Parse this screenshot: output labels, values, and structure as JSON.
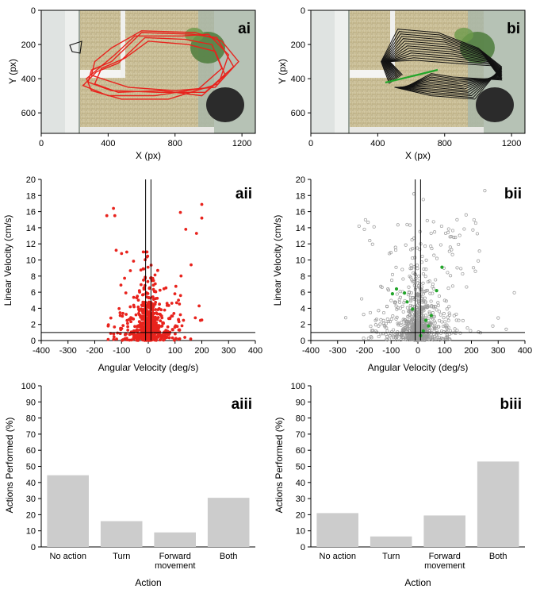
{
  "colors": {
    "red": "#e8231d",
    "green": "#22a52a",
    "gray_bar": "#cccccc",
    "gray_point": "#9a9a9a",
    "track_black": "#111111"
  },
  "chart_data": [
    {
      "id": "ai",
      "panel_label": "ai",
      "type": "image-with-tracks",
      "xlabel": "X (px)",
      "ylabel": "Y (px)",
      "xlim": [
        0,
        1280
      ],
      "ylim": [
        0,
        720
      ],
      "y_inverted": true,
      "xticks": [
        "0",
        "400",
        "800",
        "1200"
      ],
      "yticks": [
        "0",
        "200",
        "400",
        "600"
      ],
      "track_color": "red"
    },
    {
      "id": "bi",
      "panel_label": "bi",
      "type": "image-with-tracks",
      "xlabel": "X (px)",
      "ylabel": "Y (px)",
      "xlim": [
        0,
        1280
      ],
      "ylim": [
        0,
        720
      ],
      "y_inverted": true,
      "xticks": [
        "0",
        "400",
        "800",
        "1200"
      ],
      "yticks": [
        "0",
        "200",
        "400",
        "600"
      ],
      "track_color": "black"
    },
    {
      "id": "aii",
      "panel_label": "aii",
      "type": "scatter",
      "xlabel": "Angular Velocity (deg/s)",
      "ylabel": "Linear Velocity (cm/s)",
      "xlim": [
        -400,
        400
      ],
      "ylim": [
        0,
        20
      ],
      "xticks": [
        "-400",
        "-300",
        "-200",
        "-100",
        "0",
        "100",
        "200",
        "300",
        "400"
      ],
      "yticks": [
        "0",
        "2",
        "4",
        "6",
        "8",
        "10",
        "12",
        "14",
        "16",
        "18",
        "20"
      ],
      "thresholds": {
        "x": [
          -10,
          10
        ],
        "y": 1
      },
      "marker": "filled-red",
      "highlight_points": [
        [
          -155,
          15.5
        ],
        [
          -130,
          16.4
        ],
        [
          -125,
          15.5
        ],
        [
          120,
          15.9
        ],
        [
          200,
          16.9
        ],
        [
          200,
          15.2
        ],
        [
          140,
          13.8
        ],
        [
          180,
          13.3
        ],
        [
          -120,
          11.2
        ],
        [
          -100,
          10.8
        ],
        [
          160,
          9.4
        ],
        [
          190,
          4.3
        ],
        [
          195,
          2.5
        ],
        [
          120,
          3.2
        ],
        [
          -140,
          2.8
        ],
        [
          -150,
          1.8
        ]
      ]
    },
    {
      "id": "bii",
      "panel_label": "bii",
      "type": "scatter",
      "xlabel": "Angular Velocity (deg/s)",
      "ylabel": "Linear Velocity (cm/s)",
      "xlim": [
        -400,
        400
      ],
      "ylim": [
        0,
        20
      ],
      "xticks": [
        "-400",
        "-300",
        "-200",
        "-100",
        "0",
        "100",
        "200",
        "300",
        "400"
      ],
      "yticks": [
        "0",
        "2",
        "4",
        "6",
        "8",
        "10",
        "12",
        "14",
        "16",
        "18",
        "20"
      ],
      "thresholds": {
        "x": [
          -10,
          10
        ],
        "y": 1
      },
      "marker": "open-gray",
      "highlight_points": [
        [
          -15,
          18.2
        ],
        [
          20,
          17.5
        ],
        [
          250,
          18.6
        ],
        [
          -220,
          14.2
        ],
        [
          -200,
          13.8
        ],
        [
          180,
          15.6
        ],
        [
          300,
          2.8
        ],
        [
          230,
          11.1
        ],
        [
          -180,
          12.4
        ],
        [
          140,
          12.8
        ],
        [
          280,
          1.8
        ],
        [
          330,
          1.4
        ]
      ],
      "green_points": [
        [
          -95,
          5.8
        ],
        [
          -80,
          6.4
        ],
        [
          -50,
          5.9
        ],
        [
          -40,
          4.8
        ],
        [
          70,
          6.2
        ],
        [
          90,
          9.1
        ],
        [
          50,
          3.1
        ],
        [
          40,
          1.8
        ],
        [
          20,
          1.2
        ],
        [
          -20,
          3.9
        ],
        [
          30,
          2.5
        ],
        [
          10,
          0.6
        ]
      ]
    },
    {
      "id": "aiii",
      "panel_label": "aiii",
      "type": "bar",
      "xlabel": "Action",
      "ylabel": "Actions Performed (%)",
      "ylim": [
        0,
        100
      ],
      "yticks": [
        "0",
        "10",
        "20",
        "30",
        "40",
        "50",
        "60",
        "70",
        "80",
        "90",
        "100"
      ],
      "categories": [
        "No action",
        "Turn",
        "Forward movement",
        "Both"
      ],
      "category_lines": [
        [
          "No action"
        ],
        [
          "Turn"
        ],
        [
          "Forward",
          "movement"
        ],
        [
          "Both"
        ]
      ],
      "values": [
        44.5,
        16,
        9,
        30.5
      ]
    },
    {
      "id": "biii",
      "panel_label": "biii",
      "type": "bar",
      "xlabel": "Action",
      "ylabel": "Actions Performed (%)",
      "ylim": [
        0,
        100
      ],
      "yticks": [
        "0",
        "10",
        "20",
        "30",
        "40",
        "50",
        "60",
        "70",
        "80",
        "90",
        "100"
      ],
      "categories": [
        "No action",
        "Turn",
        "Forward movement",
        "Both"
      ],
      "category_lines": [
        [
          "No action"
        ],
        [
          "Turn"
        ],
        [
          "Forward",
          "movement"
        ],
        [
          "Both"
        ]
      ],
      "values": [
        21,
        6.5,
        19.5,
        53
      ]
    }
  ]
}
